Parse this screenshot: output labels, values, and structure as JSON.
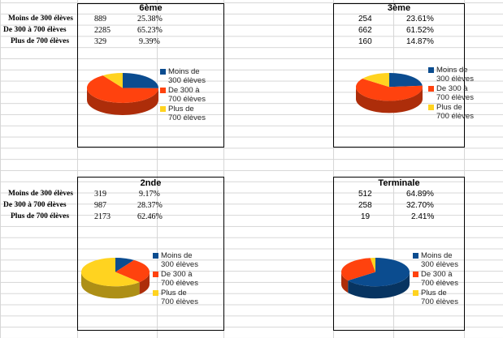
{
  "row_labels": [
    "Moins de 300 élèves",
    "De 300 à 700 élèves",
    "Plus de 700 élèves"
  ],
  "colors": {
    "blue": "#0b4c8f",
    "red": "#ff420e",
    "yellow": "#ffd320"
  },
  "legend": [
    "Moins de\n300 élèves",
    "De 300 à\n700 élèves",
    "Plus de\n700 élèves"
  ],
  "blocks": [
    {
      "title": "6ème",
      "rows": [
        {
          "count": "889",
          "pct": "25.38%"
        },
        {
          "count": "2285",
          "pct": "65.23%"
        },
        {
          "count": "329",
          "pct": "9.39%"
        }
      ]
    },
    {
      "title": "3ème",
      "rows": [
        {
          "count": "254",
          "pct": "23.61%"
        },
        {
          "count": "662",
          "pct": "61.52%"
        },
        {
          "count": "160",
          "pct": "14.87%"
        }
      ]
    },
    {
      "title": "2nde",
      "rows": [
        {
          "count": "319",
          "pct": "9.17%"
        },
        {
          "count": "987",
          "pct": "28.37%"
        },
        {
          "count": "2173",
          "pct": "62.46%"
        }
      ]
    },
    {
      "title": "Terminale",
      "rows": [
        {
          "count": "512",
          "pct": "64.89%"
        },
        {
          "count": "258",
          "pct": "32.70%"
        },
        {
          "count": "19",
          "pct": "2.41%"
        }
      ]
    }
  ],
  "chart_data": [
    {
      "type": "pie",
      "title": "6ème",
      "categories": [
        "Moins de 300 élèves",
        "De 300 à 700 élèves",
        "Plus de 700 élèves"
      ],
      "values": [
        889,
        2285,
        329
      ]
    },
    {
      "type": "pie",
      "title": "3ème",
      "categories": [
        "Moins de 300 élèves",
        "De 300 à 700 élèves",
        "Plus de 700 élèves"
      ],
      "values": [
        254,
        662,
        160
      ]
    },
    {
      "type": "pie",
      "title": "2nde",
      "categories": [
        "Moins de 300 élèves",
        "De 300 à 700 élèves",
        "Plus de 700 élèves"
      ],
      "values": [
        319,
        987,
        2173
      ]
    },
    {
      "type": "pie",
      "title": "Terminale",
      "categories": [
        "Moins de 300 élèves",
        "De 300 à 700 élèves",
        "Plus de 700 élèves"
      ],
      "values": [
        512,
        258,
        19
      ]
    }
  ]
}
